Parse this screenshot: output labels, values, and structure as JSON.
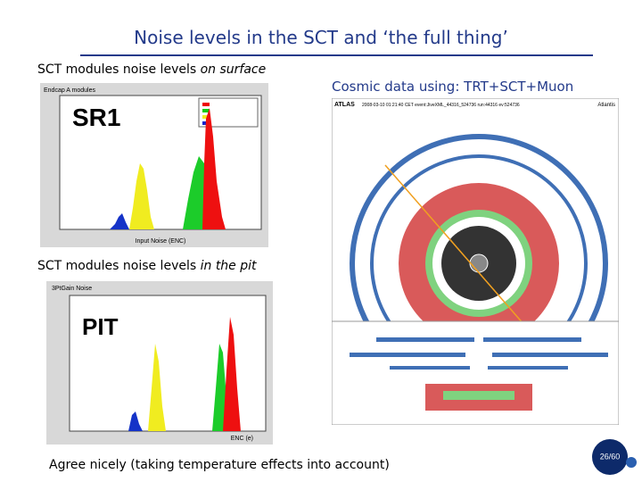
{
  "title": "Noise levels in the SCT and ‘the full thing’",
  "surface_caption": {
    "plain": "SCT modules noise levels ",
    "italic": "on surface"
  },
  "pit_caption": {
    "plain": "SCT modules noise levels ",
    "italic": "in the pit"
  },
  "cosmic_caption": "Cosmic data using: TRT+SCT+Muon",
  "footer": "Agree nicely (taking temperature effects into account)",
  "page_number": "26/60",
  "plots": {
    "sr1": {
      "header": "Endcap A modules",
      "label": "SR1",
      "xlabel": "Input Noise (ENC)"
    },
    "pit": {
      "header": "3PtGain Noise",
      "label": "PIT",
      "xlabel": "ENC (e)"
    }
  },
  "event": {
    "atlas": "ATLAS",
    "info": "2008-03-10 01:21:40 CET event:JiveXML_44316_524736 run:44316 ev:524736",
    "atlantis": "Atlantis"
  }
}
